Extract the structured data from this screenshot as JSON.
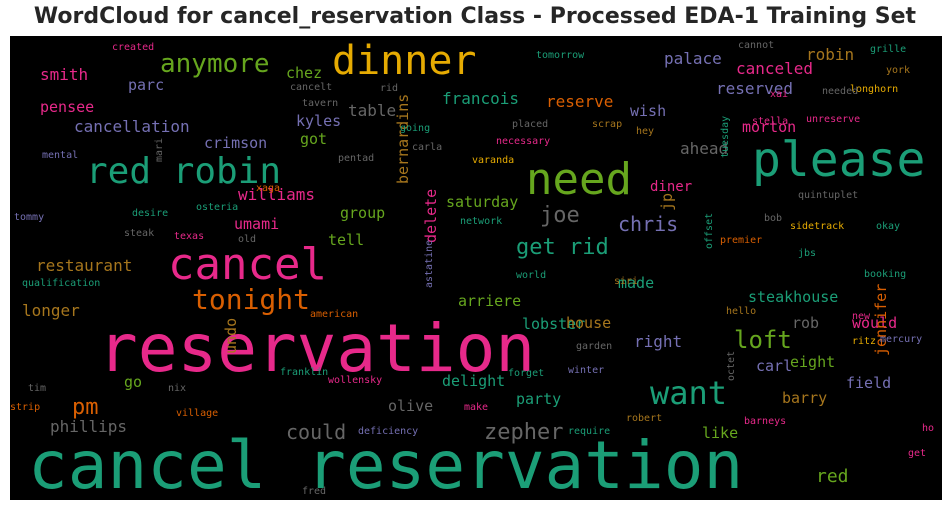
{
  "chart_data": {
    "type": "wordcloud",
    "title": "WordCloud for cancel_reservation Class - Processed EDA-1 Training Set",
    "background": "#000000",
    "colors": {
      "teal": "#1b9e77",
      "pink": "#e7298a",
      "orange": "#d95f02",
      "gold": "#e6ab02",
      "green": "#66a61e",
      "purple": "#7570b3",
      "brown": "#a6761d",
      "gray": "#666666"
    },
    "words": [
      {
        "text": "cancel reservation",
        "c": "teal"
      },
      {
        "text": "reservation",
        "c": "pink"
      },
      {
        "text": "please",
        "c": "teal"
      },
      {
        "text": "need",
        "c": "green"
      },
      {
        "text": "cancel",
        "c": "pink"
      },
      {
        "text": "red robin",
        "c": "teal"
      },
      {
        "text": "dinner",
        "c": "gold"
      },
      {
        "text": "want",
        "c": "teal"
      },
      {
        "text": "tonight",
        "c": "orange"
      },
      {
        "text": "anymore",
        "c": "green"
      },
      {
        "text": "zepher",
        "c": "gray"
      },
      {
        "text": "loft",
        "c": "green"
      },
      {
        "text": "get rid",
        "c": "teal"
      },
      {
        "text": "joe",
        "c": "gray"
      },
      {
        "text": "chris",
        "c": "purple"
      },
      {
        "text": "pm",
        "c": "orange"
      },
      {
        "text": "could",
        "c": "gray"
      },
      {
        "text": "restaurant",
        "c": "brown"
      },
      {
        "text": "cancellation",
        "c": "purple"
      },
      {
        "text": "williams",
        "c": "pink"
      },
      {
        "text": "phillips",
        "c": "gray"
      },
      {
        "text": "smith",
        "c": "pink"
      },
      {
        "text": "francois",
        "c": "teal"
      },
      {
        "text": "reserve",
        "c": "orange"
      },
      {
        "text": "canceled",
        "c": "pink"
      },
      {
        "text": "reserved",
        "c": "purple"
      },
      {
        "text": "robin",
        "c": "brown"
      },
      {
        "text": "palace",
        "c": "purple"
      },
      {
        "text": "table",
        "c": "gray"
      },
      {
        "text": "pensee",
        "c": "pink"
      },
      {
        "text": "parc",
        "c": "purple"
      },
      {
        "text": "chez",
        "c": "green"
      },
      {
        "text": "crimson",
        "c": "purple"
      },
      {
        "text": "kyles",
        "c": "purple"
      },
      {
        "text": "got",
        "c": "green"
      },
      {
        "text": "wish",
        "c": "purple"
      },
      {
        "text": "morton",
        "c": "pink"
      },
      {
        "text": "ahead",
        "c": "gray"
      },
      {
        "text": "saturday",
        "c": "green"
      },
      {
        "text": "group",
        "c": "green"
      },
      {
        "text": "delete",
        "c": "pink"
      },
      {
        "text": "bernardins",
        "c": "brown"
      },
      {
        "text": "tell",
        "c": "green"
      },
      {
        "text": "umami",
        "c": "pink"
      },
      {
        "text": "lobster",
        "c": "teal"
      },
      {
        "text": "made",
        "c": "teal"
      },
      {
        "text": "steakhouse",
        "c": "teal"
      },
      {
        "text": "would",
        "c": "pink"
      },
      {
        "text": "arriere",
        "c": "green"
      },
      {
        "text": "longer",
        "c": "brown"
      },
      {
        "text": "house",
        "c": "brown"
      },
      {
        "text": "right",
        "c": "purple"
      },
      {
        "text": "rob",
        "c": "gray"
      },
      {
        "text": "eight",
        "c": "green"
      },
      {
        "text": "carl",
        "c": "purple"
      },
      {
        "text": "undo",
        "c": "brown"
      },
      {
        "text": "delight",
        "c": "teal"
      },
      {
        "text": "go",
        "c": "green"
      },
      {
        "text": "olive",
        "c": "gray"
      },
      {
        "text": "party",
        "c": "teal"
      },
      {
        "text": "barry",
        "c": "brown"
      },
      {
        "text": "field",
        "c": "purple"
      },
      {
        "text": "jennifer",
        "c": "orange"
      },
      {
        "text": "like",
        "c": "green"
      },
      {
        "text": "red",
        "c": "green"
      },
      {
        "text": "diner",
        "c": "pink"
      },
      {
        "text": "jp",
        "c": "brown"
      },
      {
        "text": "created",
        "c": "pink"
      },
      {
        "text": "tomorrow",
        "c": "teal"
      },
      {
        "text": "cannot",
        "c": "gray"
      },
      {
        "text": "grille",
        "c": "teal"
      },
      {
        "text": "york",
        "c": "brown"
      },
      {
        "text": "longhorn",
        "c": "gold"
      },
      {
        "text": "needed",
        "c": "gray"
      },
      {
        "text": "xai",
        "c": "pink"
      },
      {
        "text": "cancelt",
        "c": "gray"
      },
      {
        "text": "rid",
        "c": "gray"
      },
      {
        "text": "tavern",
        "c": "gray"
      },
      {
        "text": "going",
        "c": "teal"
      },
      {
        "text": "placed",
        "c": "gray"
      },
      {
        "text": "stella",
        "c": "pink"
      },
      {
        "text": "unreserve",
        "c": "pink"
      },
      {
        "text": "scrap",
        "c": "brown"
      },
      {
        "text": "hey",
        "c": "brown"
      },
      {
        "text": "mental",
        "c": "purple"
      },
      {
        "text": "pentad",
        "c": "gray"
      },
      {
        "text": "carla",
        "c": "gray"
      },
      {
        "text": "necessary",
        "c": "pink"
      },
      {
        "text": "varanda",
        "c": "gold"
      },
      {
        "text": "mari",
        "c": "gray"
      },
      {
        "text": "tuesday",
        "c": "teal"
      },
      {
        "text": "quintuplet",
        "c": "gray"
      },
      {
        "text": "xaga",
        "c": "orange"
      },
      {
        "text": "tommy",
        "c": "purple"
      },
      {
        "text": "desire",
        "c": "teal"
      },
      {
        "text": "osteria",
        "c": "teal"
      },
      {
        "text": "network",
        "c": "teal"
      },
      {
        "text": "steak",
        "c": "gray"
      },
      {
        "text": "texas",
        "c": "pink"
      },
      {
        "text": "old",
        "c": "gray"
      },
      {
        "text": "astatine",
        "c": "purple"
      },
      {
        "text": "offset",
        "c": "teal"
      },
      {
        "text": "bob",
        "c": "gray"
      },
      {
        "text": "sidetrack",
        "c": "gold"
      },
      {
        "text": "okay",
        "c": "teal"
      },
      {
        "text": "premier",
        "c": "orange"
      },
      {
        "text": "jbs",
        "c": "teal"
      },
      {
        "text": "world",
        "c": "teal"
      },
      {
        "text": "siri",
        "c": "brown"
      },
      {
        "text": "booking",
        "c": "teal"
      },
      {
        "text": "qualification",
        "c": "teal"
      },
      {
        "text": "american",
        "c": "orange"
      },
      {
        "text": "hello",
        "c": "brown"
      },
      {
        "text": "new",
        "c": "pink"
      },
      {
        "text": "mercury",
        "c": "purple"
      },
      {
        "text": "ritz",
        "c": "gold"
      },
      {
        "text": "garden",
        "c": "gray"
      },
      {
        "text": "franklin",
        "c": "teal"
      },
      {
        "text": "tim",
        "c": "gray"
      },
      {
        "text": "nix",
        "c": "gray"
      },
      {
        "text": "wollensky",
        "c": "pink"
      },
      {
        "text": "forget",
        "c": "teal"
      },
      {
        "text": "winter",
        "c": "purple"
      },
      {
        "text": "octet",
        "c": "gray"
      },
      {
        "text": "strip",
        "c": "orange"
      },
      {
        "text": "village",
        "c": "orange"
      },
      {
        "text": "make",
        "c": "pink"
      },
      {
        "text": "robert",
        "c": "brown"
      },
      {
        "text": "barneys",
        "c": "pink"
      },
      {
        "text": "ho",
        "c": "pink"
      },
      {
        "text": "deficiency",
        "c": "purple"
      },
      {
        "text": "require",
        "c": "teal"
      },
      {
        "text": "get",
        "c": "pink"
      },
      {
        "text": "fred",
        "c": "gray"
      }
    ]
  }
}
